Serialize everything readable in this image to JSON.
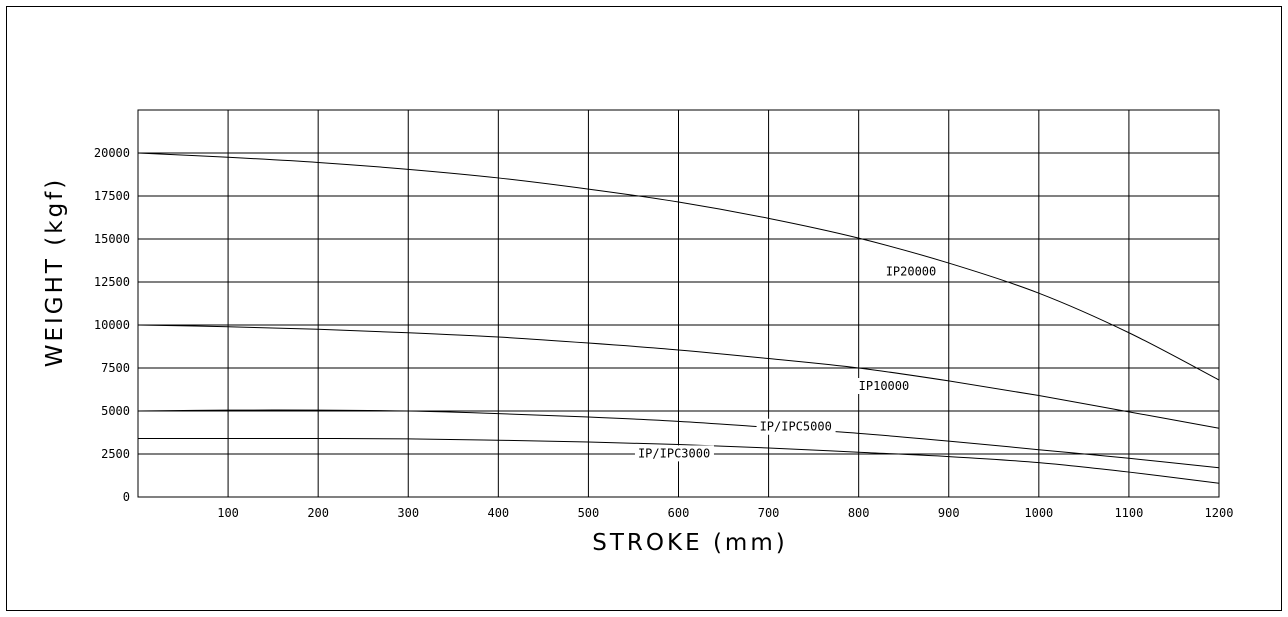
{
  "chart_data": {
    "type": "line",
    "title": "",
    "xlabel": "STROKE (mm)",
    "ylabel": "WEIGHT (kgf)",
    "xlim": [
      0,
      1200
    ],
    "ylim": [
      0,
      22500
    ],
    "grid": true,
    "x_ticks": [
      100,
      200,
      300,
      400,
      500,
      600,
      700,
      800,
      900,
      1000,
      1100,
      1200
    ],
    "y_ticks": [
      0,
      2500,
      5000,
      7500,
      10000,
      12500,
      15000,
      17500,
      20000
    ],
    "x": [
      0,
      100,
      200,
      300,
      400,
      500,
      600,
      700,
      800,
      900,
      1000,
      1100,
      1200
    ],
    "series": [
      {
        "name": "IP20000",
        "values": [
          20000,
          19750,
          19450,
          19050,
          18550,
          17900,
          17150,
          16200,
          15050,
          13600,
          11850,
          9550,
          6800
        ]
      },
      {
        "name": "IP10000",
        "values": [
          10000,
          9900,
          9750,
          9550,
          9300,
          8950,
          8550,
          8050,
          7500,
          6750,
          5900,
          4950,
          4000
        ]
      },
      {
        "name": "IP/IPC5000",
        "values": [
          5000,
          5050,
          5050,
          5000,
          4850,
          4650,
          4400,
          4050,
          3700,
          3250,
          2750,
          2250,
          1700
        ]
      },
      {
        "name": "IP/IPC3000",
        "values": [
          3400,
          3400,
          3400,
          3380,
          3300,
          3200,
          3050,
          2850,
          2600,
          2350,
          2000,
          1450,
          800
        ]
      }
    ]
  }
}
